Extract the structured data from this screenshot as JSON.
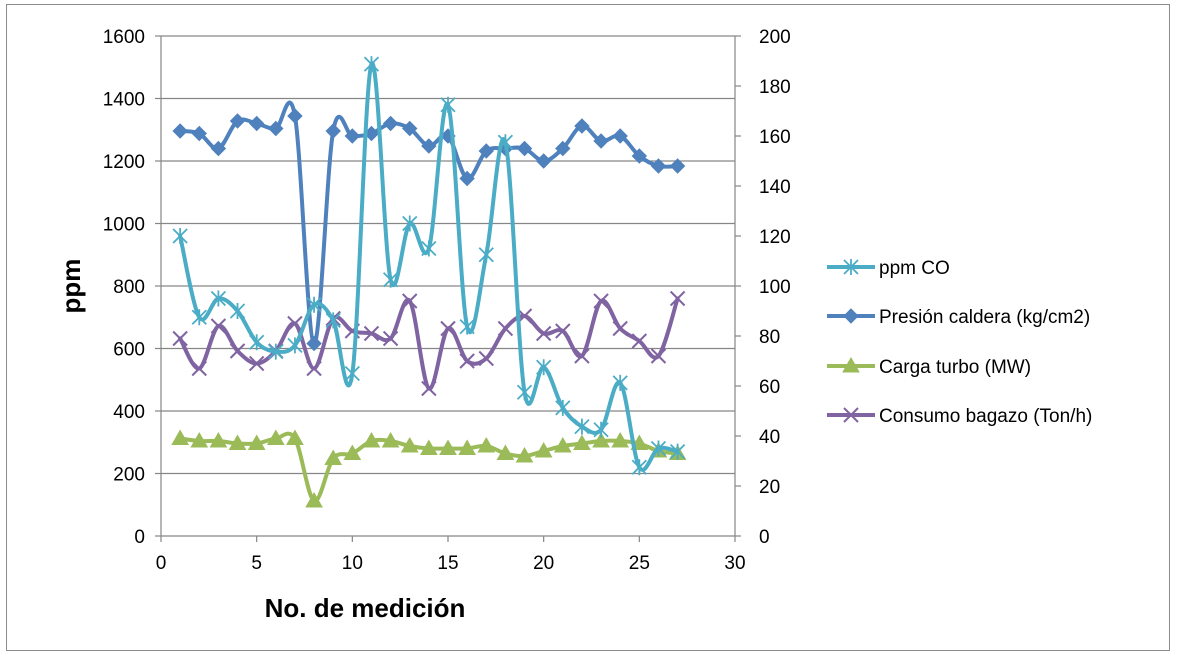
{
  "chart_data": {
    "type": "line",
    "title": "",
    "xlabel": "No. de medición",
    "ylabel": "ppm",
    "y2label": "",
    "xlim": [
      0,
      30
    ],
    "ylim": [
      0,
      1600
    ],
    "y2lim": [
      0,
      200
    ],
    "x_ticks": [
      0,
      5,
      10,
      15,
      20,
      25,
      30
    ],
    "y_ticks": [
      0,
      200,
      400,
      600,
      800,
      1000,
      1200,
      1400,
      1600
    ],
    "y2_ticks": [
      0,
      20,
      40,
      60,
      80,
      100,
      120,
      140,
      160,
      180,
      200
    ],
    "grid": "horizontal",
    "legend_position": "right",
    "x": [
      1,
      2,
      3,
      4,
      5,
      6,
      7,
      8,
      9,
      10,
      11,
      12,
      13,
      14,
      15,
      16,
      17,
      18,
      19,
      20,
      21,
      22,
      23,
      24,
      25,
      26,
      27
    ],
    "series": [
      {
        "name": "ppm CO",
        "axis": "left",
        "color": "#4bacc6",
        "marker": "asterisk",
        "values": [
          960,
          700,
          760,
          720,
          620,
          590,
          610,
          740,
          690,
          520,
          1510,
          820,
          1000,
          920,
          1380,
          670,
          900,
          1260,
          460,
          540,
          410,
          350,
          340,
          490,
          220,
          280,
          270
        ]
      },
      {
        "name": "Presión caldera (kg/cm2)",
        "axis": "right",
        "color": "#4f81bd",
        "marker": "diamond",
        "values": [
          162,
          161,
          155,
          166,
          165,
          163,
          168,
          77,
          162,
          160,
          161,
          165,
          163,
          156,
          160,
          143,
          154,
          155,
          155,
          150,
          155,
          164,
          158,
          160,
          152,
          148,
          148
        ]
      },
      {
        "name": "Carga turbo (MW)",
        "axis": "right",
        "color": "#9bbb59",
        "marker": "triangle",
        "values": [
          39,
          38,
          38,
          37,
          37,
          39,
          39,
          14,
          31,
          33,
          38,
          38,
          36,
          35,
          35,
          35,
          36,
          33,
          32,
          34,
          36,
          37,
          38,
          38,
          37,
          34,
          33
        ]
      },
      {
        "name": "Consumo bagazo (Ton/h)",
        "axis": "right",
        "color": "#8064a2",
        "marker": "x",
        "values": [
          79,
          67,
          84,
          74,
          69,
          74,
          85,
          67,
          87,
          82,
          81,
          79,
          94,
          59,
          83,
          70,
          71,
          83,
          88,
          81,
          82,
          72,
          94,
          83,
          78,
          72,
          95
        ]
      }
    ]
  }
}
